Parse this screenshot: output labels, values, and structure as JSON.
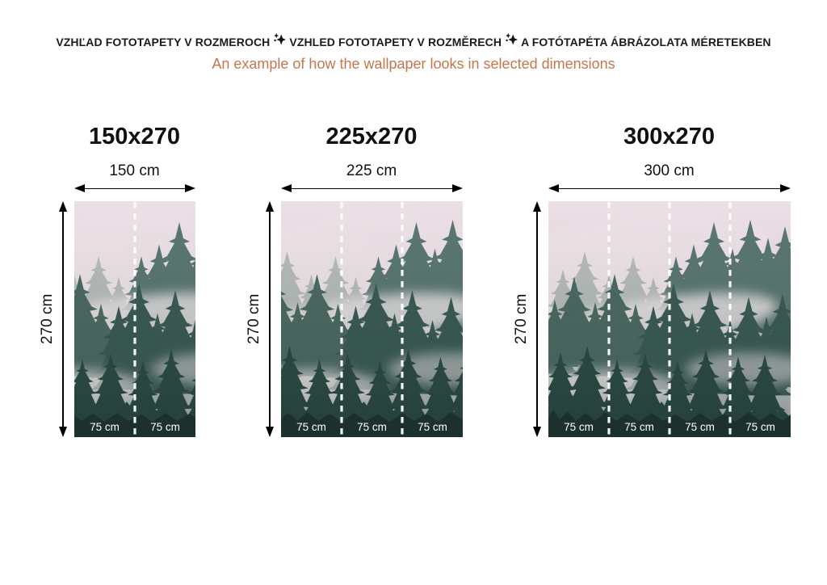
{
  "header": {
    "title_segments": [
      "VZHĽAD FOTOTAPETY V ROZMEROCH",
      "VZHLED FOTOTAPETY V ROZMĚRECH",
      "A FOTÓTAPÉTA ÁBRÁZOLATA MÉRETEKBEN"
    ],
    "separator_icon": "sparkle-star-icon",
    "subtitle": "An example of how the wallpaper looks in selected dimensions"
  },
  "image_name": "foggy-forest-wallpaper-preview",
  "colors": {
    "header_text": "#1b1b1b",
    "subtitle_text": "#c2774e",
    "arrow": "#000000",
    "segment_label": "#ffffff",
    "seam_divider": "#ffffff",
    "fog_pink": "#ebdfe5",
    "tree_dark": "#1e3430",
    "tree_mid": "#3c5b55",
    "tree_light": "#54726b"
  },
  "panels": [
    {
      "title": "150x270",
      "width_label": "150 cm",
      "height_label": "270 cm",
      "width_cm": 150,
      "height_cm": 270,
      "segments": [
        "75 cm",
        "75 cm"
      ]
    },
    {
      "title": "225x270",
      "width_label": "225 cm",
      "height_label": "270 cm",
      "width_cm": 225,
      "height_cm": 270,
      "segments": [
        "75 cm",
        "75 cm",
        "75 cm"
      ]
    },
    {
      "title": "300x270",
      "width_label": "300 cm",
      "height_label": "270 cm",
      "width_cm": 300,
      "height_cm": 270,
      "segments": [
        "75 cm",
        "75 cm",
        "75 cm",
        "75 cm"
      ]
    }
  ]
}
